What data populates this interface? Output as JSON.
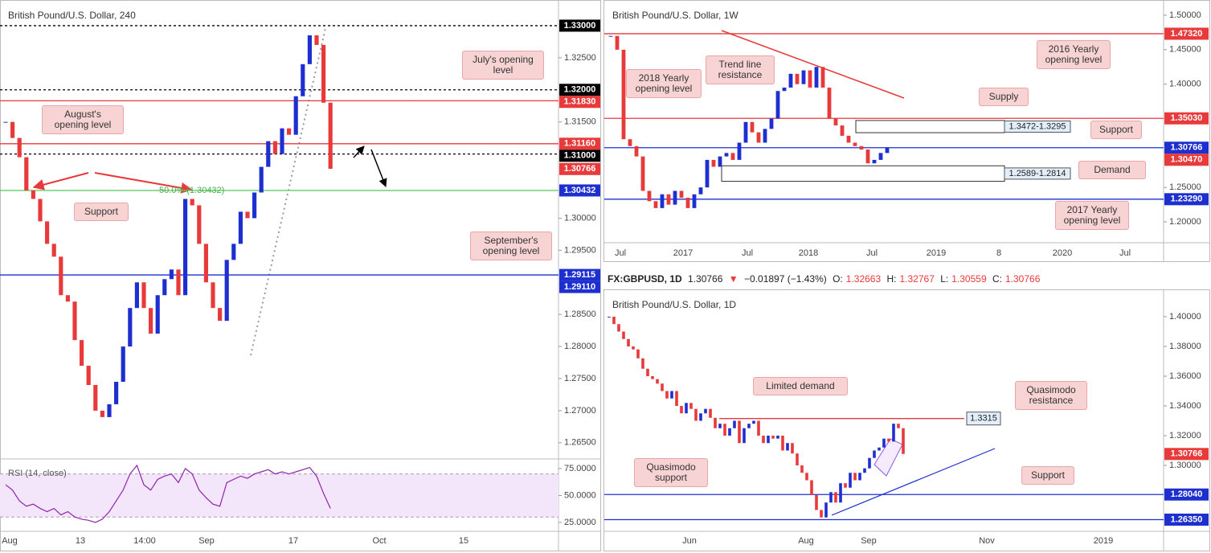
{
  "header": {
    "symbol": "FX:GBPUSD, 1D",
    "last": "1.30766",
    "direction": "▼",
    "change": "−0.01897 (−1.43%)",
    "open_label": "O:",
    "open": "1.32663",
    "high_label": "H:",
    "high": "1.32767",
    "low_label": "L:",
    "low": "1.30559",
    "close_label": "C:",
    "close": "1.30766"
  },
  "chart_data": [
    {
      "type": "candlestick",
      "title": "British Pound/U.S. Dollar, 240",
      "ylim": [
        1.2626,
        1.3335
      ],
      "yticks": [
        {
          "value": 1.325,
          "label": "1.32500"
        },
        {
          "value": 1.315,
          "label": "1.31500"
        },
        {
          "value": 1.3,
          "label": "1.30000"
        },
        {
          "value": 1.295,
          "label": "1.29500"
        },
        {
          "value": 1.285,
          "label": "1.28500"
        },
        {
          "value": 1.28,
          "label": "1.28000"
        },
        {
          "value": 1.275,
          "label": "1.27500"
        },
        {
          "value": 1.27,
          "label": "1.27000"
        },
        {
          "value": 1.265,
          "label": "1.26500"
        }
      ],
      "markers": [
        {
          "value": 1.33,
          "label": "1.33000",
          "color": "#000000"
        },
        {
          "value": 1.32,
          "label": "1.32000",
          "color": "#000000"
        },
        {
          "value": 1.3183,
          "label": "1.31830",
          "color": "#e8393b"
        },
        {
          "value": 1.3116,
          "label": "1.31160",
          "color": "#e8393b"
        },
        {
          "value": 1.31,
          "label": "1.31000",
          "color": "#000000"
        },
        {
          "value": 1.30766,
          "label": "1.30766",
          "color": "#e8393b"
        },
        {
          "value": 1.30432,
          "label": "1.30432",
          "color": "#1e2fd0"
        },
        {
          "value": 1.29115,
          "label": "1.29115",
          "color": "#1e2fd0"
        },
        {
          "value": 1.2911,
          "label": "1.29110",
          "color": "#1e2fd0"
        }
      ],
      "lines": [
        {
          "value": 1.33,
          "color": "#000000",
          "dash": true
        },
        {
          "value": 1.32,
          "color": "#000000",
          "dash": true
        },
        {
          "value": 1.3183,
          "color": "#e8393b"
        },
        {
          "value": 1.3116,
          "color": "#e8393b"
        },
        {
          "value": 1.31,
          "color": "#000000",
          "dash": true
        },
        {
          "value": 1.30432,
          "color": "#66cc66"
        },
        {
          "value": 1.29115,
          "color": "#1e2fd0"
        }
      ],
      "xlabels": [
        "Aug",
        "13",
        "14:00",
        "Sep",
        "17",
        "Oct",
        "15"
      ],
      "up_color": "#1e2fd0",
      "down_color": "#e8393b",
      "values": [
        1.315,
        1.3125,
        1.3095,
        1.3043,
        1.303,
        1.2995,
        1.296,
        1.294,
        1.288,
        1.287,
        1.281,
        1.277,
        1.274,
        1.27,
        1.269,
        1.271,
        1.2745,
        1.28,
        1.286,
        1.29,
        1.286,
        1.282,
        1.288,
        1.2905,
        1.292,
        1.288,
        1.303,
        1.302,
        1.296,
        1.29,
        1.286,
        1.284,
        1.2935,
        1.296,
        1.301,
        1.3,
        1.304,
        1.308,
        1.312,
        1.31,
        1.314,
        1.313,
        1.319,
        1.324,
        1.3285,
        1.327,
        1.318,
        1.3077
      ],
      "annotations": [
        "July's opening level",
        "August's opening level",
        "Support",
        "September's opening level"
      ],
      "fib_label": "50.0% (1.30432)",
      "rsi": {
        "title": "RSI (14, close)",
        "ylim": [
          17.5,
          83.2
        ],
        "yticks": [
          {
            "value": 75,
            "label": "75.0000"
          },
          {
            "value": 50,
            "label": "50.0000"
          },
          {
            "value": 25,
            "label": "25.0000"
          }
        ],
        "band": [
          30,
          70
        ],
        "color": "#8e24aa",
        "values": [
          60,
          55,
          45,
          40,
          42,
          38,
          35,
          38,
          32,
          35,
          30,
          28,
          27,
          25,
          28,
          35,
          45,
          55,
          70,
          78,
          60,
          55,
          65,
          68,
          70,
          62,
          75,
          70,
          55,
          48,
          42,
          40,
          62,
          65,
          68,
          66,
          70,
          72,
          74,
          70,
          72,
          70,
          72,
          74,
          76,
          68,
          52,
          38
        ]
      }
    },
    {
      "type": "candlestick",
      "title": "British Pound/U.S. Dollar, 1W",
      "ylim": [
        1.172,
        1.5175
      ],
      "yticks": [
        {
          "value": 1.5,
          "label": "1.50000"
        },
        {
          "value": 1.45,
          "label": "1.45000"
        },
        {
          "value": 1.4,
          "label": "1.40000"
        },
        {
          "value": 1.25,
          "label": "1.25000"
        },
        {
          "value": 1.2,
          "label": "1.20000"
        }
      ],
      "markers": [
        {
          "value": 1.4732,
          "label": "1.47320",
          "color": "#e8393b"
        },
        {
          "value": 1.3503,
          "label": "1.35030",
          "color": "#e8393b"
        },
        {
          "value": 1.30766,
          "label": "1.30766",
          "color": "#1e2fd0"
        },
        {
          "value": 1.3047,
          "label": "1.30470",
          "color": "#e8393b"
        },
        {
          "value": 1.2329,
          "label": "1.23290",
          "color": "#1e2fd0"
        }
      ],
      "lines": [
        {
          "value": 1.4732,
          "color": "#e8393b"
        },
        {
          "value": 1.3503,
          "color": "#e8393b"
        },
        {
          "value": 1.30766,
          "color": "#1e2fd0"
        },
        {
          "value": 1.2329,
          "color": "#1e2fd0"
        }
      ],
      "zones": [
        {
          "label": "1.3472-1.3295",
          "top": 1.3472,
          "bottom": 1.3295
        },
        {
          "label": "1.2589-1.2814",
          "top": 1.2814,
          "bottom": 1.2589
        }
      ],
      "xlabels": [
        "Jul",
        "2017",
        "Jul",
        "2018",
        "Jul",
        "2019",
        "8",
        "2020",
        "Jul"
      ],
      "up_color": "#1e2fd0",
      "down_color": "#e8393b",
      "values": [
        1.47,
        1.45,
        1.32,
        1.31,
        1.295,
        1.245,
        1.23,
        1.22,
        1.24,
        1.225,
        1.245,
        1.235,
        1.22,
        1.24,
        1.25,
        1.29,
        1.28,
        1.295,
        1.3,
        1.29,
        1.315,
        1.345,
        1.33,
        1.315,
        1.335,
        1.35,
        1.39,
        1.395,
        1.415,
        1.4,
        1.42,
        1.395,
        1.425,
        1.395,
        1.35,
        1.34,
        1.325,
        1.315,
        1.31,
        1.305,
        1.285,
        1.29,
        1.3,
        1.3077
      ],
      "annotations": [
        "Trend line resistance",
        "2018 Yearly opening level",
        "2016 Yearly opening level",
        "Supply",
        "Support",
        "Demand",
        "2017 Yearly opening level"
      ]
    },
    {
      "type": "candlestick",
      "title": "British Pound/U.S. Dollar, 1D",
      "ylim": [
        1.2589,
        1.4173
      ],
      "yticks": [
        {
          "value": 1.4,
          "label": "1.40000"
        },
        {
          "value": 1.38,
          "label": "1.38000"
        },
        {
          "value": 1.36,
          "label": "1.36000"
        },
        {
          "value": 1.34,
          "label": "1.34000"
        },
        {
          "value": 1.32,
          "label": "1.32000"
        },
        {
          "value": 1.3,
          "label": "1.30000"
        }
      ],
      "markers": [
        {
          "value": 1.30766,
          "label": "1.30766",
          "color": "#e8393b"
        },
        {
          "value": 1.2804,
          "label": "1.28040",
          "color": "#1e2fd0"
        },
        {
          "value": 1.2635,
          "label": "1.26350",
          "color": "#1e2fd0"
        }
      ],
      "lines": [
        {
          "value": 1.3315,
          "color": "#e8393b",
          "label": "1.3315"
        },
        {
          "value": 1.2804,
          "color": "#1e2fd0"
        },
        {
          "value": 1.2635,
          "color": "#1e2fd0"
        }
      ],
      "xlabels": [
        "Jun",
        "Aug",
        "Sep",
        "Nov",
        "2019"
      ],
      "up_color": "#1e2fd0",
      "down_color": "#e8393b",
      "values": [
        1.4,
        1.395,
        1.39,
        1.385,
        1.38,
        1.378,
        1.372,
        1.365,
        1.36,
        1.358,
        1.355,
        1.35,
        1.345,
        1.35,
        1.34,
        1.335,
        1.342,
        1.338,
        1.33,
        1.335,
        1.338,
        1.332,
        1.325,
        1.328,
        1.32,
        1.325,
        1.33,
        1.315,
        1.325,
        1.328,
        1.33,
        1.32,
        1.315,
        1.32,
        1.318,
        1.32,
        1.31,
        1.315,
        1.308,
        1.3,
        1.295,
        1.29,
        1.28,
        1.27,
        1.265,
        1.275,
        1.282,
        1.275,
        1.288,
        1.285,
        1.295,
        1.29,
        1.295,
        1.298,
        1.305,
        1.31,
        1.312,
        1.318,
        1.316,
        1.328,
        1.325,
        1.3077
      ],
      "annotations": [
        "Limited demand",
        "Quasimodo resistance",
        "Quasimodo support",
        "Support"
      ]
    }
  ]
}
